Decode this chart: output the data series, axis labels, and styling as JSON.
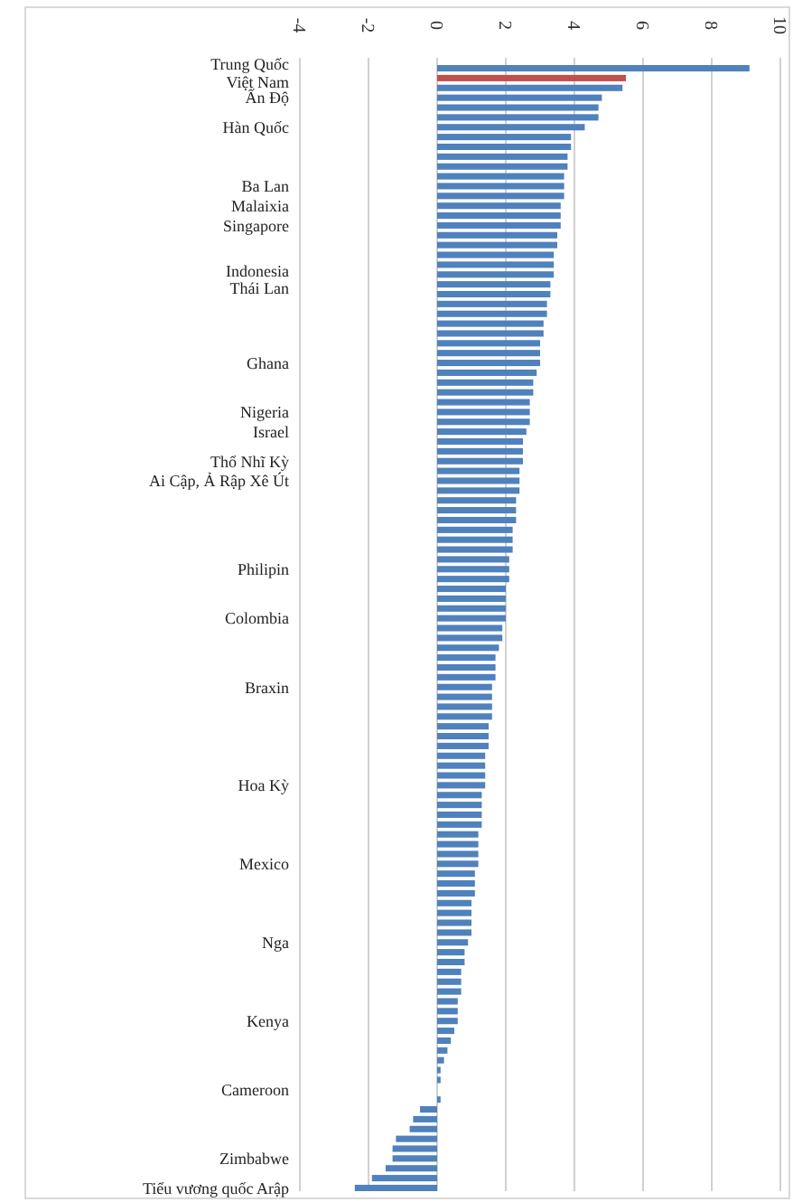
{
  "chart_data": {
    "type": "bar",
    "orientation": "horizontal",
    "categories": [
      "Trung Quốc",
      "Việt Nam",
      null,
      "Ấn Độ",
      null,
      null,
      "Hàn Quốc",
      null,
      null,
      null,
      null,
      null,
      "Ba Lan",
      null,
      "Malaixia",
      null,
      "Singapore",
      null,
      null,
      null,
      null,
      "Indonesia",
      "Thái Lan",
      null,
      null,
      null,
      null,
      null,
      null,
      null,
      "Ghana",
      null,
      null,
      null,
      null,
      "Nigeria",
      null,
      "Israel",
      null,
      null,
      "Thổ Nhĩ Kỳ",
      null,
      "Ai Cập, Ả Rập Xê Út",
      null,
      null,
      null,
      null,
      null,
      null,
      null,
      null,
      "Philipin",
      null,
      null,
      null,
      null,
      "Colombia",
      null,
      null,
      null,
      null,
      null,
      null,
      "Braxin",
      null,
      null,
      null,
      null,
      null,
      null,
      null,
      null,
      null,
      "Hoa Kỳ",
      null,
      null,
      null,
      null,
      null,
      null,
      null,
      "Mexico",
      null,
      null,
      null,
      null,
      null,
      null,
      null,
      "Nga",
      null,
      null,
      null,
      null,
      null,
      null,
      null,
      "Kenya",
      null,
      null,
      null,
      null,
      null,
      null,
      "Cameroon",
      null,
      null,
      null,
      null,
      null,
      null,
      "Zimbabwe",
      null,
      null,
      "Tiểu vương quốc Arập"
    ],
    "values": [
      9.1,
      5.5,
      5.4,
      4.8,
      4.7,
      4.7,
      4.3,
      3.9,
      3.9,
      3.8,
      3.8,
      3.7,
      3.7,
      3.7,
      3.6,
      3.6,
      3.6,
      3.5,
      3.5,
      3.4,
      3.4,
      3.4,
      3.3,
      3.3,
      3.2,
      3.2,
      3.1,
      3.1,
      3.0,
      3.0,
      3.0,
      2.9,
      2.8,
      2.8,
      2.7,
      2.7,
      2.7,
      2.6,
      2.5,
      2.5,
      2.5,
      2.4,
      2.4,
      2.4,
      2.3,
      2.3,
      2.3,
      2.2,
      2.2,
      2.2,
      2.1,
      2.1,
      2.1,
      2.0,
      2.0,
      2.0,
      2.0,
      1.9,
      1.9,
      1.8,
      1.7,
      1.7,
      1.7,
      1.6,
      1.6,
      1.6,
      1.6,
      1.5,
      1.5,
      1.5,
      1.4,
      1.4,
      1.4,
      1.4,
      1.3,
      1.3,
      1.3,
      1.3,
      1.2,
      1.2,
      1.2,
      1.2,
      1.1,
      1.1,
      1.1,
      1.0,
      1.0,
      1.0,
      1.0,
      0.9,
      0.8,
      0.8,
      0.7,
      0.7,
      0.7,
      0.6,
      0.6,
      0.6,
      0.5,
      0.4,
      0.3,
      0.2,
      0.1,
      0.1,
      0.0,
      0.1,
      -0.5,
      -0.7,
      -0.8,
      -1.2,
      -1.3,
      -1.3,
      -1.5,
      -1.9,
      -2.4
    ],
    "colors": [
      "#4f81bd",
      "#c0504d",
      "#4f81bd",
      "#4f81bd",
      "#4f81bd",
      "#4f81bd",
      "#4f81bd",
      "#4f81bd",
      "#4f81bd",
      "#4f81bd",
      "#4f81bd",
      "#4f81bd",
      "#4f81bd",
      "#4f81bd",
      "#4f81bd",
      "#4f81bd",
      "#4f81bd",
      "#4f81bd",
      "#4f81bd",
      "#4f81bd",
      "#4f81bd",
      "#4f81bd",
      "#4f81bd",
      "#4f81bd",
      "#4f81bd",
      "#4f81bd",
      "#4f81bd",
      "#4f81bd",
      "#4f81bd",
      "#4f81bd",
      "#4f81bd",
      "#4f81bd",
      "#4f81bd",
      "#4f81bd",
      "#4f81bd",
      "#4f81bd",
      "#4f81bd",
      "#4f81bd",
      "#4f81bd",
      "#4f81bd",
      "#4f81bd",
      "#4f81bd",
      "#4f81bd",
      "#4f81bd",
      "#4f81bd",
      "#4f81bd",
      "#4f81bd",
      "#4f81bd",
      "#4f81bd",
      "#4f81bd",
      "#4f81bd",
      "#4f81bd",
      "#4f81bd",
      "#4f81bd",
      "#4f81bd",
      "#4f81bd",
      "#4f81bd",
      "#4f81bd",
      "#4f81bd",
      "#4f81bd",
      "#4f81bd",
      "#4f81bd",
      "#4f81bd",
      "#4f81bd",
      "#4f81bd",
      "#4f81bd",
      "#4f81bd",
      "#4f81bd",
      "#4f81bd",
      "#4f81bd",
      "#4f81bd",
      "#4f81bd",
      "#4f81bd",
      "#4f81bd",
      "#4f81bd",
      "#4f81bd",
      "#4f81bd",
      "#4f81bd",
      "#4f81bd",
      "#4f81bd",
      "#4f81bd",
      "#4f81bd",
      "#4f81bd",
      "#4f81bd",
      "#4f81bd",
      "#4f81bd",
      "#4f81bd",
      "#4f81bd",
      "#4f81bd",
      "#4f81bd",
      "#4f81bd",
      "#4f81bd",
      "#4f81bd",
      "#4f81bd",
      "#4f81bd",
      "#4f81bd",
      "#4f81bd",
      "#4f81bd",
      "#4f81bd",
      "#4f81bd",
      "#4f81bd",
      "#4f81bd",
      "#4f81bd",
      "#4f81bd",
      "#4f81bd",
      "#4f81bd",
      "#4f81bd",
      "#4f81bd",
      "#4f81bd",
      "#4f81bd",
      "#4f81bd",
      "#4f81bd",
      "#4f81bd",
      "#4f81bd",
      "#4f81bd"
    ],
    "xlim": [
      -4,
      10
    ],
    "xticks": [
      -4,
      -2,
      0,
      2,
      4,
      6,
      8,
      10
    ],
    "grid": "x"
  }
}
